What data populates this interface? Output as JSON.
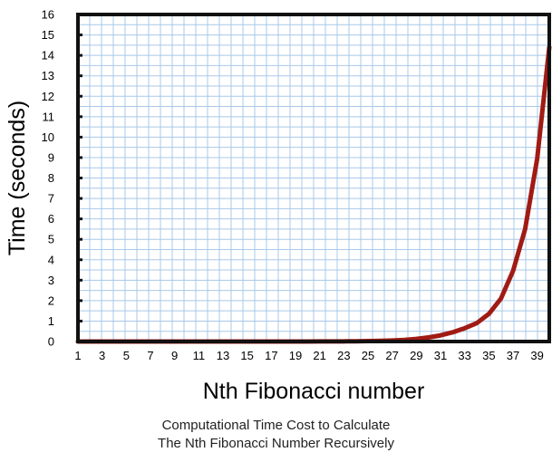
{
  "chart_data": {
    "type": "line",
    "title": "",
    "xlabel": "Nth Fibonacci number",
    "ylabel": "Time (seconds)",
    "xlim": [
      1,
      40
    ],
    "ylim": [
      0,
      16
    ],
    "grid": true,
    "x_tick_labels": [
      "1",
      "3",
      "5",
      "7",
      "9",
      "11",
      "13",
      "15",
      "17",
      "19",
      "21",
      "23",
      "25",
      "27",
      "29",
      "31",
      "33",
      "35",
      "37",
      "39"
    ],
    "y_tick_labels": [
      "0",
      "1",
      "2",
      "3",
      "4",
      "5",
      "6",
      "7",
      "8",
      "9",
      "10",
      "11",
      "12",
      "13",
      "14",
      "15",
      "16"
    ],
    "colors": {
      "line": "#a01b14",
      "grid": "#a9c8e8",
      "frame": "#111111"
    },
    "series": [
      {
        "x": [
          1,
          2,
          3,
          4,
          5,
          6,
          7,
          8,
          9,
          10,
          11,
          12,
          13,
          14,
          15,
          16,
          17,
          18,
          19,
          20,
          21,
          22,
          23,
          24,
          25,
          26,
          27,
          28,
          29,
          30,
          31,
          32,
          33,
          34,
          35,
          36,
          37,
          38,
          39,
          40
        ],
        "values": [
          0,
          0,
          0,
          0,
          0,
          0,
          0,
          0,
          0,
          0,
          0,
          0,
          0,
          0,
          0,
          0,
          0,
          0.001,
          0.001,
          0.002,
          0.003,
          0.005,
          0.008,
          0.012,
          0.02,
          0.032,
          0.052,
          0.08,
          0.13,
          0.2,
          0.3,
          0.45,
          0.65,
          0.9,
          1.35,
          2.1,
          3.45,
          5.5,
          8.95,
          14.4
        ]
      }
    ]
  },
  "caption": {
    "line1": "Computational Time Cost to Calculate",
    "line2": "The Nth Fibonacci Number Recursively"
  }
}
